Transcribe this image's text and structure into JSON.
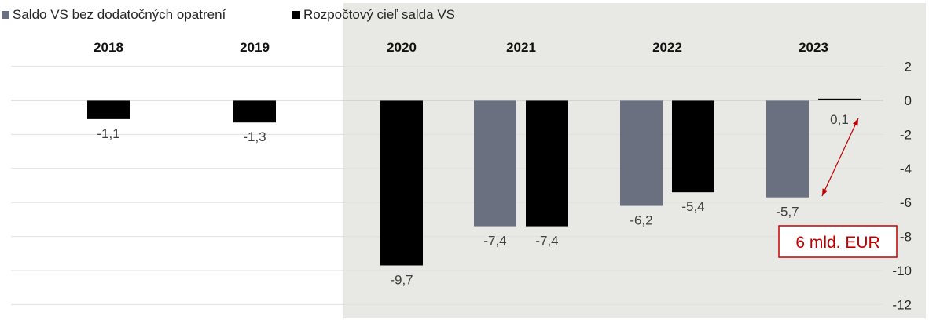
{
  "chart_data": {
    "type": "bar",
    "categories": [
      "2018",
      "2019",
      "2020",
      "2021",
      "2022",
      "2023"
    ],
    "series": [
      {
        "name": "Saldo VS bez dodatočných opatrení",
        "color": "#6b7080",
        "values": [
          null,
          null,
          null,
          -7.4,
          -6.2,
          -5.7
        ],
        "labels": [
          "",
          "",
          "",
          "-7,4",
          "-6,2",
          "-5,7"
        ]
      },
      {
        "name": "Rozpočtový cieľ salda VS",
        "color": "#000000",
        "values": [
          -1.1,
          -1.3,
          -9.7,
          -7.4,
          -5.4,
          0.1
        ],
        "labels": [
          "-1,1",
          "-1,3",
          "-9,7",
          "-7,4",
          "-5,4",
          "0,1"
        ]
      }
    ],
    "ylim": [
      -12,
      2
    ],
    "yticks": [
      2,
      0,
      -2,
      -4,
      -6,
      -8,
      -10,
      -12
    ],
    "ytick_labels": [
      "2",
      "0",
      "-2",
      "-4",
      "-6",
      "-8",
      "-10",
      "-12"
    ],
    "shaded_from_category": "2020",
    "shade_color": "#e8e8e4",
    "legend_position": "top-left",
    "annotation": {
      "text": "6 mld. EUR",
      "color": "#c00000",
      "between_category": "2023"
    }
  }
}
